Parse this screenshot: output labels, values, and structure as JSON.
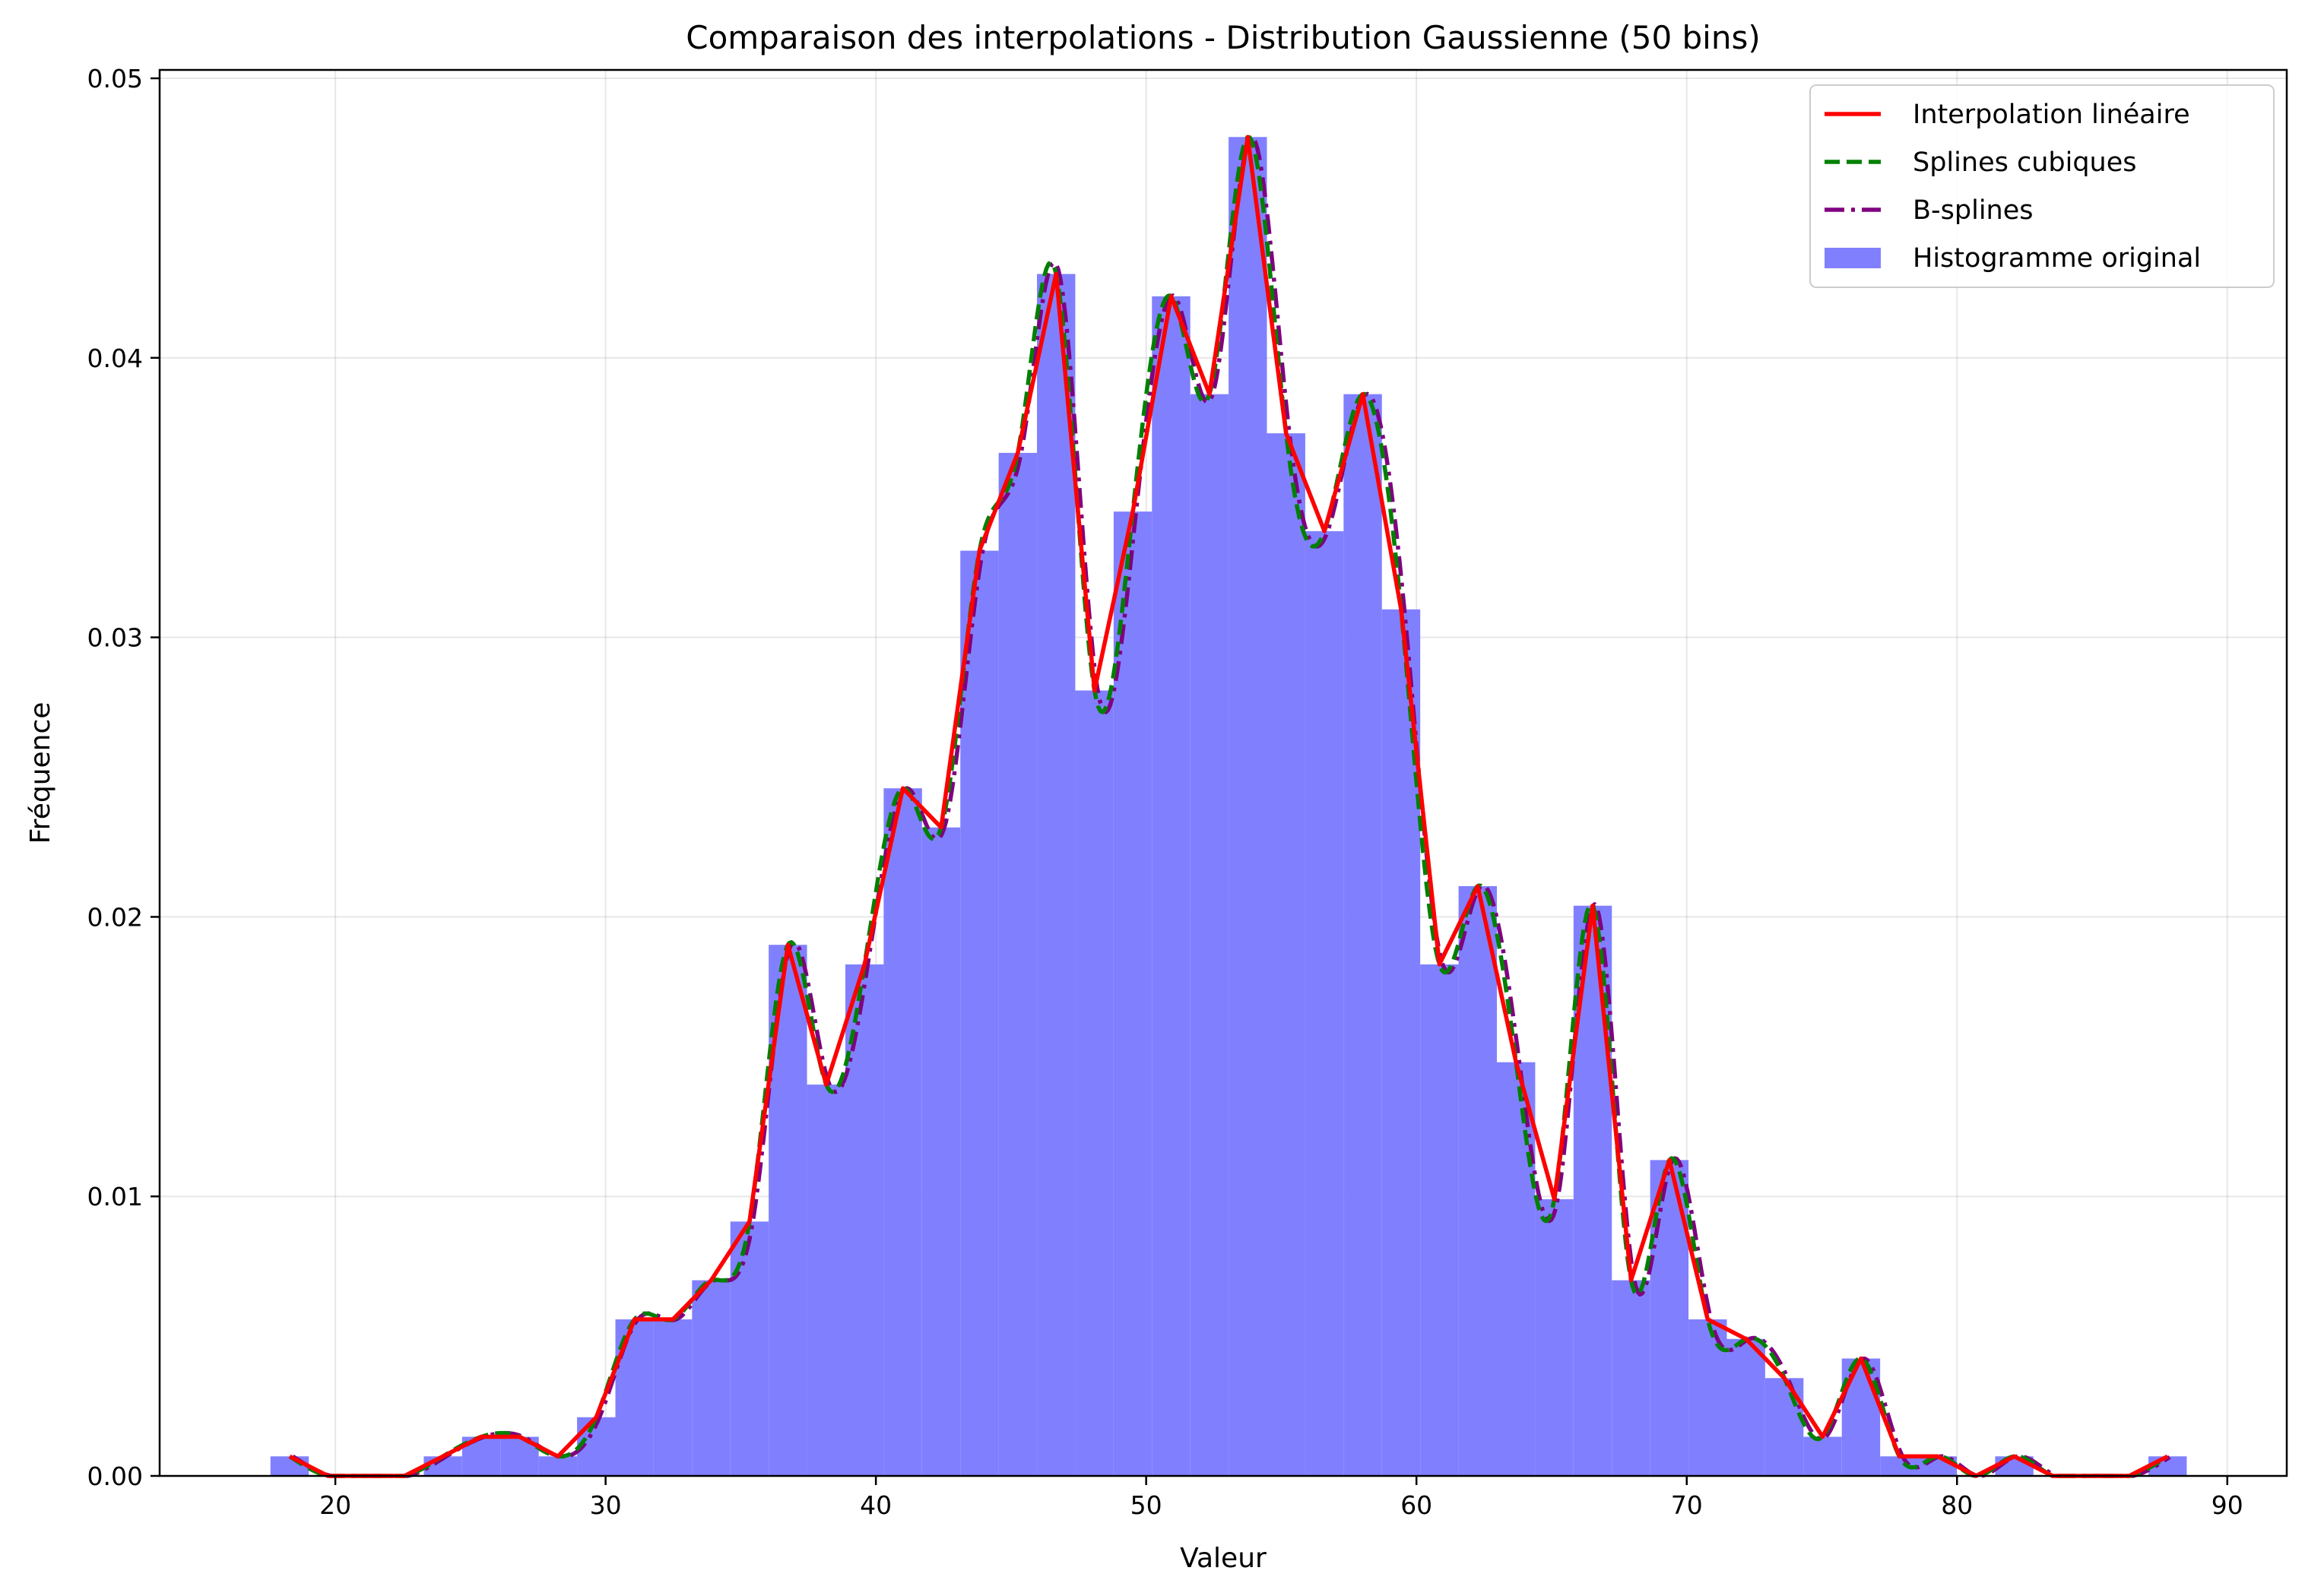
{
  "chart_data": {
    "type": "bar",
    "title": "Comparaison des interpolations - Distribution Gaussienne (50 bins)",
    "xlabel": "Valeur",
    "ylabel": "Fréquence",
    "xlim": [
      13.5,
      92.2
    ],
    "ylim": [
      0,
      0.0503
    ],
    "xticks": [
      20,
      30,
      40,
      50,
      60,
      70,
      80,
      90
    ],
    "yticks": [
      0.0,
      0.01,
      0.02,
      0.03,
      0.04,
      0.05
    ],
    "xtick_labels": [
      "20",
      "30",
      "40",
      "50",
      "60",
      "70",
      "80",
      "90"
    ],
    "ytick_labels": [
      "0.00",
      "0.01",
      "0.02",
      "0.03",
      "0.04",
      "0.05"
    ],
    "grid": true,
    "legend_position": "top-right",
    "bins": {
      "edges_start": 17.6,
      "bin_width": 1.418,
      "values": [
        0.0007,
        0,
        0,
        0,
        0.0007,
        0.0014,
        0.0014,
        0.0007,
        0.0021,
        0.0056,
        0.0056,
        0.007,
        0.0091,
        0.019,
        0.014,
        0.0183,
        0.0246,
        0.0232,
        0.0331,
        0.0366,
        0.043,
        0.0281,
        0.0345,
        0.0422,
        0.0387,
        0.0479,
        0.0373,
        0.0338,
        0.0387,
        0.031,
        0.0183,
        0.0211,
        0.0148,
        0.0099,
        0.0204,
        0.007,
        0.0113,
        0.0056,
        0.0049,
        0.0035,
        0.0014,
        0.0042,
        0.0007,
        0.0007,
        0,
        0.0007,
        0,
        0,
        0,
        0.0007
      ]
    },
    "series": [
      {
        "name": "Interpolation linéaire",
        "kind": "line",
        "color": "#ff0000",
        "style": "solid"
      },
      {
        "name": "Splines cubiques",
        "kind": "line",
        "color": "#008000",
        "style": "dashed"
      },
      {
        "name": "B-splines",
        "kind": "line",
        "color": "#800080",
        "style": "dashdot"
      },
      {
        "name": "Histogramme original",
        "kind": "bar",
        "color": "#8080ff"
      }
    ]
  }
}
